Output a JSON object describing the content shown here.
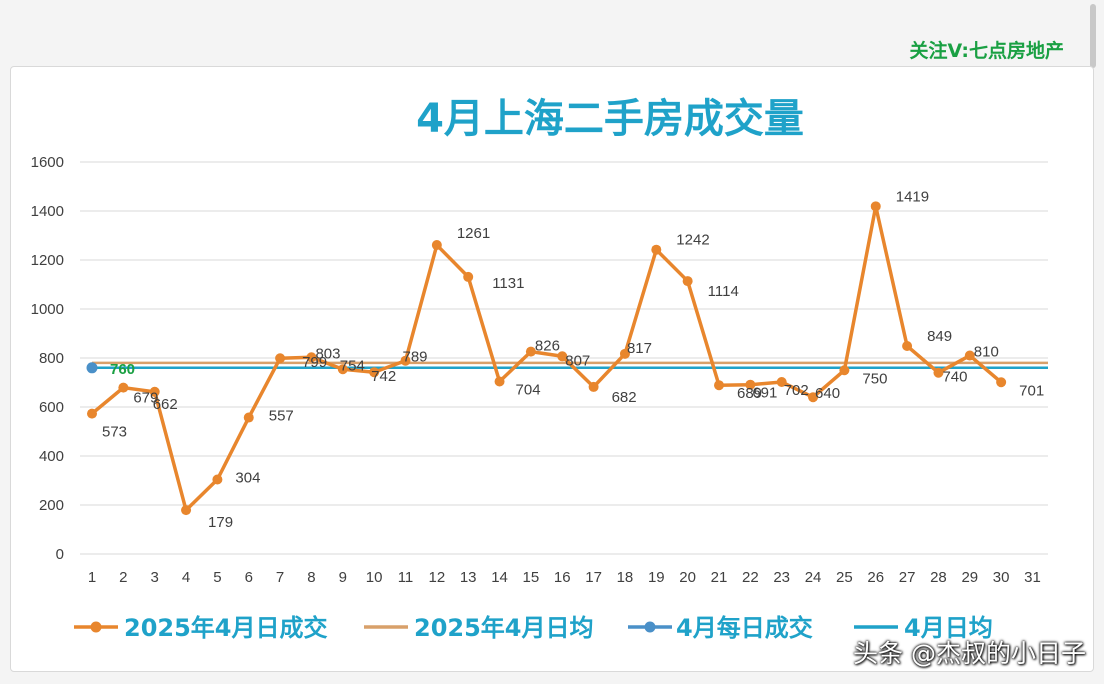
{
  "header_note": "关注V:七点房地产",
  "watermark": "头条 @杰叔的小日子",
  "colors": {
    "orange": "#e8862d",
    "avg_orange": "#d8a06a",
    "teal": "#1fa2c9",
    "blue_marker": "#4a90c8",
    "green_label": "#1aa043"
  },
  "chart_data": {
    "type": "line",
    "title": "4月上海二手房成交量",
    "xlabel": "",
    "ylabel": "",
    "ylim": [
      0,
      1600
    ],
    "yticks": [
      0,
      200,
      400,
      600,
      800,
      1000,
      1200,
      1400,
      1600
    ],
    "x": [
      1,
      2,
      3,
      4,
      5,
      6,
      7,
      8,
      9,
      10,
      11,
      12,
      13,
      14,
      15,
      16,
      17,
      18,
      19,
      20,
      21,
      22,
      23,
      24,
      25,
      26,
      27,
      28,
      29,
      30,
      31
    ],
    "grid": "horizontal",
    "legend_position": "bottom",
    "series": [
      {
        "name": "2025年4月日成交",
        "color": "#e8862d",
        "x": [
          1,
          2,
          3,
          4,
          5,
          6,
          7,
          8,
          9,
          10,
          11,
          12,
          13,
          14,
          15,
          16,
          17,
          18,
          19,
          20,
          21,
          22,
          23,
          24,
          25,
          26,
          27,
          28,
          29,
          30
        ],
        "values": [
          573,
          679,
          662,
          179,
          304,
          557,
          799,
          803,
          754,
          742,
          789,
          1261,
          1131,
          704,
          826,
          807,
          682,
          817,
          1242,
          1114,
          689,
          691,
          702,
          640,
          750,
          1419,
          849,
          740,
          810,
          701
        ],
        "labels": [
          "573",
          "679",
          "662",
          "179",
          "304",
          "557",
          "799",
          "803",
          "754",
          "742",
          "789",
          "1261",
          "1131",
          "704",
          "826",
          "807",
          "682",
          "817",
          "1242",
          "1114",
          "689",
          "691",
          "702",
          "640",
          "750",
          "1419",
          "849",
          "740",
          "810",
          "701"
        ]
      },
      {
        "name": "2025年4月日均",
        "color": "#d8a06a",
        "value": 780
      },
      {
        "name": "4月每日成交",
        "color": "#4a90c8",
        "x": [
          1
        ],
        "values": [
          760
        ],
        "labels": [
          "760"
        ]
      },
      {
        "name": "4月日均",
        "color": "#1fa2c9",
        "value": 760
      }
    ]
  }
}
